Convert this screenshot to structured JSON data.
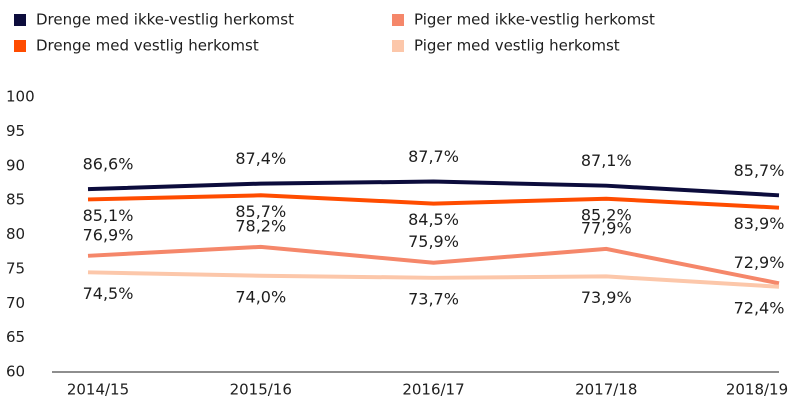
{
  "chart_data": {
    "type": "line",
    "categories": [
      "2014/15",
      "2015/16",
      "2016/17",
      "2017/18",
      "2018/19"
    ],
    "series": [
      {
        "name": "Drenge med ikke-vestlig herkomst",
        "color": "#0c0c3c",
        "values": [
          86.6,
          87.4,
          87.7,
          87.1,
          85.7
        ],
        "value_labels": [
          "86,6%",
          "87,4%",
          "87,7%",
          "87,1%",
          "85,7%"
        ]
      },
      {
        "name": "Drenge med vestlig herkomst",
        "color": "#ff4c00",
        "values": [
          85.1,
          85.7,
          84.5,
          85.2,
          83.9
        ],
        "value_labels": [
          "85,1%",
          "85,7%",
          "84,5%",
          "85,2%",
          "83,9%"
        ]
      },
      {
        "name": "Piger med ikke-vestlig herkomst",
        "color": "#f5876a",
        "values": [
          76.9,
          78.2,
          75.9,
          77.9,
          72.9
        ],
        "value_labels": [
          "76,9%",
          "78,2%",
          "75,9%",
          "77,9%",
          "72,9%"
        ]
      },
      {
        "name": "Piger med vestlig herkomst",
        "color": "#fcc7aa",
        "values": [
          74.5,
          74.0,
          73.7,
          73.9,
          72.4
        ],
        "value_labels": [
          "74,5%",
          "74,0%",
          "73,7%",
          "73,9%",
          "72,4%"
        ]
      }
    ],
    "ylim": [
      60,
      100
    ],
    "yticks": [
      60,
      65,
      70,
      75,
      80,
      85,
      90,
      95,
      100
    ],
    "grid": false,
    "legend": "top"
  }
}
